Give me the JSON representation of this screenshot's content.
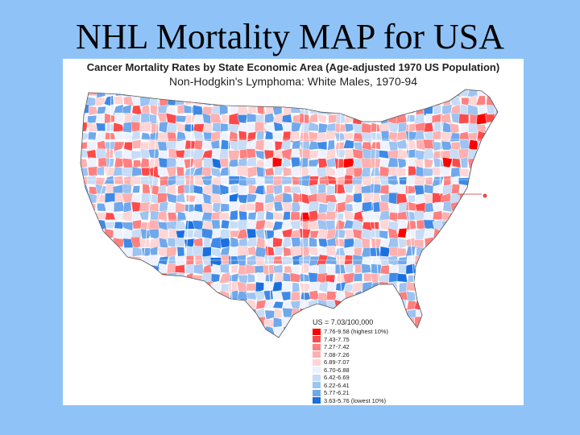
{
  "slide": {
    "title": "NHL Mortality MAP for USA"
  },
  "map": {
    "title": "Cancer Mortality Rates by State Economic Area (Age-adjusted 1970 US Population)",
    "subtitle": "Non-Hodgkin's Lymphoma:  White Males, 1970-94",
    "colors": {
      "high1": "#ff0000",
      "high2": "#ff4a4a",
      "high3": "#ff8080",
      "high4": "#ffb0b0",
      "high5": "#ffd5d5",
      "mid": "#eef2ff",
      "low5": "#c6dcf7",
      "low4": "#9cc3f2",
      "low3": "#6fa8ec",
      "low2": "#3f8ae6",
      "low1": "#1a6fe0"
    },
    "legend": {
      "title": "US = 7.03/100,000",
      "items": [
        {
          "label": "7.76-9.58 (highest 10%)",
          "color": "#ff0000"
        },
        {
          "label": "7.43-7.75",
          "color": "#ff4a4a"
        },
        {
          "label": "7.27-7.42",
          "color": "#ff8080"
        },
        {
          "label": "7.08-7.26",
          "color": "#ffb0b0"
        },
        {
          "label": "6.89-7.07",
          "color": "#ffd5d5"
        },
        {
          "label": "6.70-6.88",
          "color": "#eef2ff"
        },
        {
          "label": "6.42-6.69",
          "color": "#c6dcf7"
        },
        {
          "label": "6.22-6.41",
          "color": "#9cc3f2"
        },
        {
          "label": "5.77-6.21",
          "color": "#6fa8ec"
        },
        {
          "label": "3.63-5.76 (lowest 10%)",
          "color": "#1a6fe0"
        }
      ]
    }
  }
}
